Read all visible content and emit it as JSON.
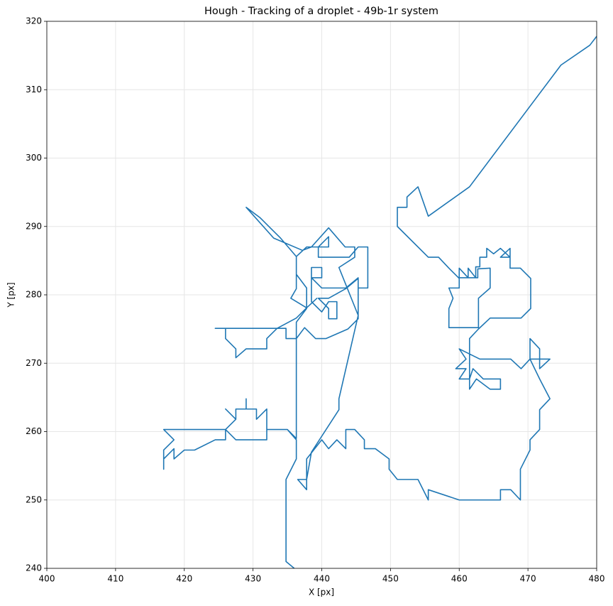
{
  "chart_data": {
    "type": "line",
    "title": "Hough - Tracking of a droplet - 49b-1r system",
    "x_label": "X [px]",
    "y_label": "Y [px]",
    "color": "#1f77b4",
    "grid": true,
    "xlim": [
      400,
      480
    ],
    "xticks": [
      400,
      410,
      420,
      430,
      440,
      450,
      460,
      470,
      480
    ],
    "ylim": [
      240,
      320
    ],
    "yticks": [
      240,
      250,
      260,
      270,
      280,
      290,
      300,
      310,
      320
    ],
    "x": [
      436,
      434.8,
      434.8,
      436.3,
      436.3,
      435,
      432,
      432,
      427.5,
      426,
      418.5,
      417,
      418.5,
      417,
      417,
      417,
      418.5,
      418.5,
      420,
      421.5,
      424.5,
      426,
      426,
      427.5,
      426,
      427.5,
      427.5,
      429,
      429,
      429,
      430.5,
      430.5,
      432,
      432,
      435,
      436.3,
      436.3,
      437.8,
      437.8,
      436.3,
      436.3,
      437.8,
      441,
      441,
      439.5,
      439.5,
      444,
      445.3,
      446.7,
      446.7,
      445.3,
      445.3,
      443.5,
      440,
      438.5,
      440,
      440,
      438.5,
      438.5,
      440,
      441,
      442.2,
      442.2,
      441,
      441,
      439.5,
      441,
      443.5,
      445.3,
      445.3,
      443.8,
      440.6,
      439.1,
      437.5,
      436.3,
      434.8,
      434.8,
      424.5,
      426,
      426,
      427.5,
      427.5,
      429,
      432,
      432,
      433.5,
      436.3,
      437.8,
      439.3,
      437.8,
      435.5,
      436.3,
      436.3,
      434,
      432.5,
      431,
      429,
      433,
      437.2,
      438.5,
      441,
      443.4,
      444.8,
      444.8,
      442.5,
      445.3,
      442.5,
      442.5,
      438.5,
      437.8,
      436.5,
      437.8,
      437.8,
      440,
      441,
      442.2,
      443.5,
      443.5,
      444.8,
      446.2,
      446.2,
      447.8,
      449.8,
      449.8,
      451,
      454,
      455.5,
      455.5,
      460,
      466,
      466,
      467.5,
      468.9,
      468.9,
      470.3,
      470.3,
      471.7,
      471.7,
      473.2,
      471.7,
      470.3,
      470.3,
      471.7,
      471.7,
      473.2,
      470.3,
      469,
      467.5,
      463,
      460,
      461,
      459.5,
      461,
      460,
      461.5,
      461.5,
      462.5,
      464.5,
      466,
      466,
      463.5,
      462,
      461.5,
      461.5,
      462.8,
      464.5,
      469,
      470.4,
      470.4,
      468.9,
      467.4,
      467.4,
      466,
      467.4,
      466,
      465,
      464,
      464,
      463,
      463,
      462.4,
      462.4,
      461.3,
      461.3,
      460,
      460,
      461.3,
      462.7,
      462.7,
      464.5,
      464.5,
      462.8,
      462.8,
      461.4,
      458.5,
      458.5,
      459.1,
      458.5,
      460,
      460,
      458.5,
      457,
      455.5,
      451,
      451,
      452.4,
      452.4,
      454,
      455.5,
      461.5,
      474.8,
      479,
      480
    ],
    "values": [
      240,
      241,
      253,
      256,
      258.8,
      260.3,
      260.3,
      258.8,
      258.8,
      260.3,
      260.3,
      260.3,
      258.8,
      257.3,
      254.5,
      256,
      257.5,
      256,
      257.3,
      257.3,
      258.8,
      258.8,
      260.3,
      261.8,
      263.3,
      261.8,
      263.3,
      263.3,
      264.8,
      263.3,
      263.3,
      261.8,
      263.3,
      260.3,
      260.3,
      259,
      276,
      278,
      281,
      283,
      285.6,
      287,
      287,
      288.5,
      287,
      285.5,
      285.5,
      287,
      287,
      281,
      281,
      282.5,
      281,
      281,
      282.5,
      282.5,
      284,
      284,
      279,
      277.5,
      279,
      279,
      276.5,
      276.5,
      278,
      279.5,
      279.5,
      280.9,
      282.4,
      276.5,
      275,
      273.6,
      273.6,
      275.2,
      273.6,
      273.6,
      275.1,
      275.1,
      275.1,
      273.6,
      272.1,
      270.8,
      272.1,
      272.1,
      273.6,
      275.1,
      276.6,
      278.1,
      279.5,
      278.1,
      279.5,
      280.9,
      285.6,
      288.3,
      289.8,
      291.3,
      292.8,
      288.3,
      286.5,
      287,
      289.8,
      287,
      287,
      285.5,
      284,
      277,
      264.8,
      263.2,
      257,
      253,
      253,
      251.5,
      256,
      258.8,
      257.5,
      258.8,
      257.5,
      260.3,
      260.3,
      258.8,
      257.5,
      257.5,
      256,
      254.5,
      253,
      253,
      250,
      251.5,
      250,
      250,
      251.5,
      251.5,
      250,
      254.5,
      257.3,
      258.8,
      260.3,
      263.2,
      264.8,
      267.7,
      270.6,
      273.6,
      272.1,
      269.2,
      270.6,
      270.6,
      269.2,
      270.6,
      270.6,
      272.1,
      270.6,
      269.2,
      269.2,
      267.7,
      267.7,
      266.2,
      267.7,
      266.2,
      266.2,
      267.7,
      267.7,
      269.2,
      267.7,
      273.6,
      275,
      276.6,
      276.6,
      278,
      282.4,
      283.9,
      283.9,
      286.8,
      285.5,
      285.5,
      286.8,
      286,
      286.8,
      285.5,
      285.5,
      284.1,
      284.1,
      282.5,
      283.9,
      282.5,
      282.5,
      283.9,
      282.5,
      282.5,
      283.8,
      283.9,
      281,
      279.5,
      275.2,
      275.2,
      275.2,
      278,
      279.5,
      281,
      281,
      282.4,
      283.9,
      285.5,
      285.5,
      290,
      292.8,
      292.8,
      294.3,
      295.8,
      291.5,
      295.8,
      313.6,
      316.5,
      317.8
    ]
  }
}
